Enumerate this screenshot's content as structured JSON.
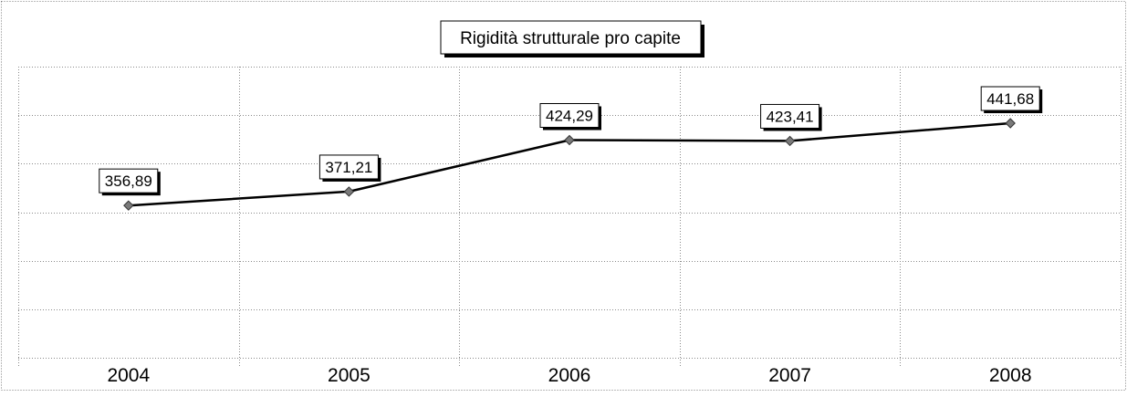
{
  "chart_data": {
    "type": "line",
    "title": "Rigidità strutturale pro capite",
    "categories": [
      "2004",
      "2005",
      "2006",
      "2007",
      "2008"
    ],
    "series": [
      {
        "values": [
          356.89,
          371.21,
          424.29,
          423.41,
          441.68
        ],
        "labels": [
          "356,89",
          "371,21",
          "424,29",
          "423,41",
          "441,68"
        ]
      }
    ],
    "xlabel": "",
    "ylabel": "",
    "ylim": [
      200,
      500
    ],
    "grid": true,
    "legend": "none",
    "colors": {
      "line": "#000000",
      "marker": "#7a7a7a",
      "grid": "#8a8a8a",
      "frame": "#555555"
    }
  }
}
